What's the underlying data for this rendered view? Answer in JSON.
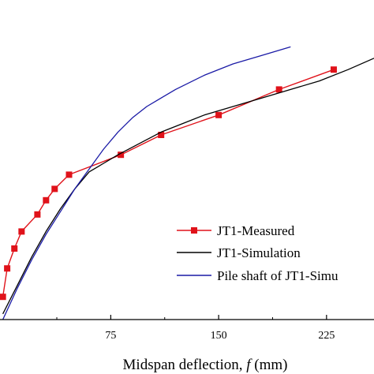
{
  "chart_data": {
    "type": "line",
    "xlabel_prefix": "Midspan deflection, ",
    "xlabel_var": "f",
    "xlabel_suffix": " (mm)",
    "ylabel": "",
    "xlim": [
      -2,
      258
    ],
    "ylim": [
      0,
      100
    ],
    "xticks": [
      75,
      150,
      225
    ],
    "grid": false,
    "legend_position": "bottom-right",
    "series": [
      {
        "name": "JT1-Measured",
        "style": "line-with-square-markers",
        "color": "#e0121a",
        "x": [
          0,
          3,
          8,
          13,
          24,
          30,
          36,
          46,
          82,
          110,
          150,
          192,
          230
        ],
        "y": [
          8,
          18,
          25,
          31,
          37,
          42,
          46,
          51,
          58,
          65,
          72,
          81,
          88
        ]
      },
      {
        "name": "JT1-Simulation",
        "style": "line",
        "color": "#000000",
        "x": [
          0,
          10,
          20,
          30,
          40,
          50,
          60,
          70,
          80,
          95,
          110,
          125,
          140,
          160,
          180,
          200,
          220,
          240,
          258
        ],
        "y": [
          2,
          12,
          22,
          31,
          39,
          46,
          52,
          55,
          58,
          62,
          66,
          69,
          72,
          75,
          78,
          81,
          84,
          88,
          92
        ]
      },
      {
        "name": "Pile shaft  of JT1-Simu",
        "style": "line",
        "color": "#1a1aa6",
        "x": [
          0,
          10,
          20,
          30,
          40,
          50,
          60,
          70,
          80,
          90,
          100,
          110,
          120,
          140,
          160,
          180,
          200
        ],
        "y": [
          0,
          11,
          21,
          30,
          38,
          46,
          53,
          60,
          66,
          71,
          75,
          78,
          81,
          86,
          90,
          93,
          96
        ]
      }
    ]
  }
}
